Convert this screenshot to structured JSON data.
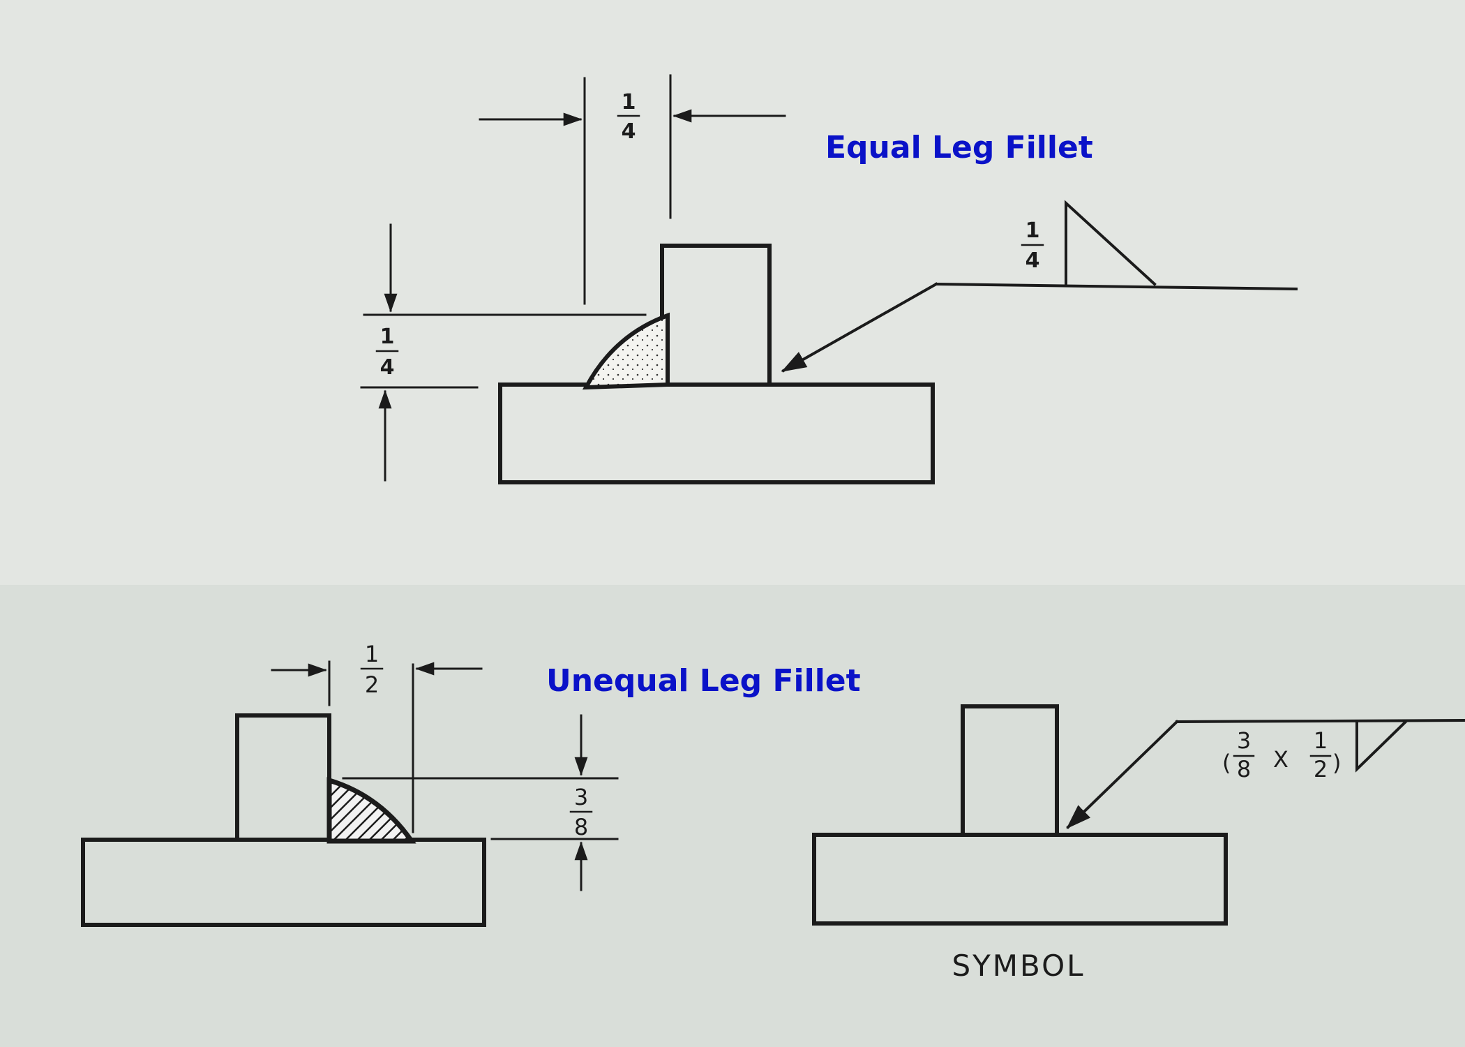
{
  "top_panel": {
    "title": "Equal Leg Fillet",
    "horizontal_dim": {
      "num": "1",
      "den": "4"
    },
    "vertical_dim": {
      "num": "1",
      "den": "4"
    },
    "symbol_size": {
      "num": "1",
      "den": "4"
    }
  },
  "bottom_panel": {
    "title": "Unequal Leg Fillet",
    "horizontal_dim": {
      "num": "1",
      "den": "2"
    },
    "vertical_dim": {
      "num": "3",
      "den": "8"
    },
    "symbol_size": {
      "open": "(",
      "a_num": "3",
      "a_den": "8",
      "times": "X",
      "b_num": "1",
      "b_den": "2",
      "close": ")"
    },
    "symbol_label": "SYMBOL"
  },
  "colors": {
    "title": "#0a12c8",
    "ink": "#1b1b1b",
    "paper_top": "#e3e6e2",
    "paper_bottom": "#d9ded9"
  }
}
